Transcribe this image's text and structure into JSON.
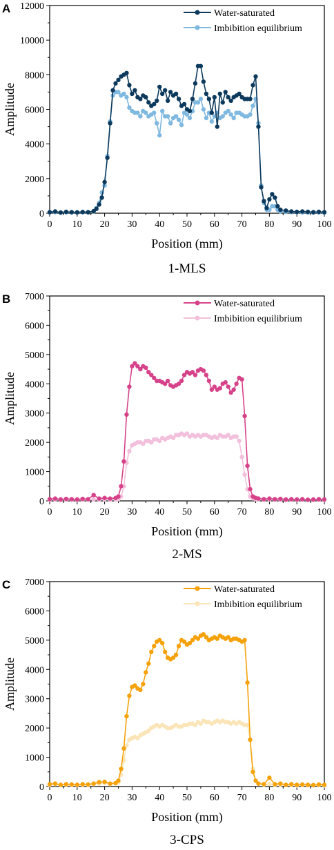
{
  "chart_data": [
    {
      "type": "line",
      "panel_label": "A",
      "caption": "1-MLS",
      "xlabel": "Position (mm)",
      "ylabel": "Amplitude",
      "xlim": [
        0,
        100
      ],
      "ylim": [
        0,
        12000
      ],
      "xticks": [
        0,
        10,
        20,
        30,
        40,
        50,
        60,
        70,
        80,
        90,
        100
      ],
      "yticks": [
        0,
        2000,
        4000,
        6000,
        8000,
        10000,
        12000
      ],
      "legend_position": "top-right",
      "series": [
        {
          "name": "Water-saturated",
          "color": "#0d3a5c",
          "x": [
            0,
            2,
            4,
            6,
            8,
            10,
            12,
            14,
            16,
            17,
            18,
            19,
            20,
            21,
            22,
            23,
            24,
            25,
            26,
            27,
            28,
            29,
            30,
            31,
            32,
            33,
            34,
            35,
            36,
            37,
            38,
            39,
            40,
            41,
            42,
            43,
            44,
            45,
            46,
            47,
            48,
            49,
            50,
            51,
            52,
            53,
            54,
            55,
            56,
            57,
            58,
            59,
            60,
            61,
            62,
            63,
            64,
            65,
            66,
            67,
            68,
            69,
            70,
            71,
            72,
            73,
            74,
            75,
            76,
            77,
            78,
            79,
            80,
            81,
            82,
            83,
            84,
            86,
            88,
            90,
            92,
            94,
            96,
            98,
            100
          ],
          "y": [
            60,
            100,
            40,
            80,
            60,
            50,
            70,
            60,
            120,
            250,
            500,
            900,
            1800,
            3200,
            5200,
            7100,
            7500,
            7700,
            7900,
            8000,
            8100,
            7400,
            6900,
            7100,
            6700,
            6600,
            6800,
            6700,
            6400,
            6200,
            6300,
            6500,
            7300,
            6900,
            7100,
            6500,
            7000,
            6800,
            6900,
            6600,
            6200,
            6300,
            6000,
            5900,
            6600,
            7500,
            8500,
            8500,
            7600,
            6900,
            6600,
            5800,
            6700,
            5000,
            6900,
            6400,
            7000,
            6700,
            6500,
            6700,
            6800,
            6900,
            6700,
            6600,
            6600,
            6600,
            7400,
            7900,
            5000,
            1500,
            700,
            300,
            800,
            1100,
            900,
            400,
            200,
            150,
            100,
            80,
            100,
            80,
            60,
            80,
            60
          ]
        },
        {
          "name": "Imbibition equilibrium",
          "color": "#7fb8e0",
          "x": [
            0,
            2,
            4,
            6,
            8,
            10,
            12,
            14,
            16,
            17,
            18,
            19,
            20,
            21,
            22,
            23,
            24,
            25,
            26,
            27,
            28,
            29,
            30,
            31,
            32,
            33,
            34,
            35,
            36,
            37,
            38,
            39,
            40,
            41,
            42,
            43,
            44,
            45,
            46,
            47,
            48,
            49,
            50,
            51,
            52,
            53,
            54,
            55,
            56,
            57,
            58,
            59,
            60,
            61,
            62,
            63,
            64,
            65,
            66,
            67,
            68,
            69,
            70,
            71,
            72,
            73,
            74,
            75,
            76,
            77,
            78,
            79,
            80,
            81,
            82,
            83,
            84,
            86,
            88,
            90,
            92,
            94,
            96,
            98,
            100
          ],
          "y": [
            40,
            60,
            30,
            50,
            40,
            30,
            50,
            40,
            100,
            300,
            600,
            1200,
            1600,
            3300,
            5300,
            6800,
            7000,
            7000,
            6800,
            6900,
            6700,
            6100,
            5900,
            5800,
            5800,
            5600,
            5900,
            5800,
            5600,
            5700,
            5800,
            5200,
            4500,
            5900,
            5600,
            5600,
            5200,
            5500,
            5600,
            5400,
            5100,
            5800,
            5700,
            5500,
            5900,
            6400,
            6400,
            6600,
            6000,
            5500,
            5800,
            5300,
            5600,
            5800,
            5500,
            5600,
            5800,
            5900,
            5700,
            5500,
            5800,
            5800,
            5700,
            5600,
            5600,
            5700,
            6200,
            6600,
            5200,
            1600,
            600,
            200,
            200,
            400,
            400,
            200,
            100,
            80,
            60,
            50,
            40,
            40,
            30,
            40,
            30
          ]
        }
      ]
    },
    {
      "type": "line",
      "panel_label": "B",
      "caption": "2-MS",
      "xlabel": "Position (mm)",
      "ylabel": "Amplitude",
      "xlim": [
        0,
        100
      ],
      "ylim": [
        0,
        7000
      ],
      "xticks": [
        0,
        10,
        20,
        30,
        40,
        50,
        60,
        70,
        80,
        90,
        100
      ],
      "yticks": [
        0,
        1000,
        2000,
        3000,
        4000,
        5000,
        6000,
        7000
      ],
      "legend_position": "top-right",
      "series": [
        {
          "name": "Water-saturated",
          "color": "#d6428a",
          "x": [
            0,
            2,
            4,
            6,
            8,
            10,
            12,
            14,
            16,
            18,
            20,
            22,
            24,
            25,
            26,
            27,
            28,
            29,
            30,
            31,
            32,
            33,
            34,
            35,
            36,
            37,
            38,
            39,
            40,
            41,
            42,
            43,
            44,
            45,
            46,
            47,
            48,
            49,
            50,
            51,
            52,
            53,
            54,
            55,
            56,
            57,
            58,
            59,
            60,
            61,
            62,
            63,
            64,
            65,
            66,
            67,
            68,
            69,
            70,
            71,
            72,
            73,
            74,
            75,
            76,
            78,
            80,
            82,
            84,
            86,
            88,
            90,
            92,
            94,
            96,
            98,
            100
          ],
          "y": [
            60,
            80,
            50,
            70,
            60,
            50,
            70,
            60,
            200,
            80,
            100,
            80,
            100,
            150,
            500,
            1350,
            2950,
            3900,
            4600,
            4700,
            4600,
            4500,
            4600,
            4550,
            4400,
            4300,
            4200,
            4100,
            4100,
            4050,
            4000,
            4100,
            3950,
            3900,
            3950,
            4000,
            4100,
            4300,
            4400,
            4350,
            4400,
            4300,
            4450,
            4500,
            4450,
            4300,
            4100,
            3800,
            3900,
            3800,
            3850,
            4000,
            4050,
            3900,
            3700,
            3800,
            4000,
            4200,
            4150,
            2900,
            1200,
            400,
            150,
            100,
            80,
            60,
            80,
            60,
            70,
            50,
            60,
            50,
            60,
            40,
            50,
            60,
            50
          ]
        },
        {
          "name": "Imbibition equilibrium",
          "color": "#f2c0dc",
          "x": [
            0,
            2,
            4,
            6,
            8,
            10,
            12,
            14,
            16,
            18,
            20,
            22,
            24,
            25,
            26,
            27,
            28,
            29,
            30,
            31,
            32,
            33,
            34,
            35,
            36,
            37,
            38,
            39,
            40,
            41,
            42,
            43,
            44,
            45,
            46,
            47,
            48,
            49,
            50,
            51,
            52,
            53,
            54,
            55,
            56,
            57,
            58,
            59,
            60,
            61,
            62,
            63,
            64,
            65,
            66,
            67,
            68,
            69,
            70,
            71,
            72,
            73,
            74,
            75,
            76,
            78,
            80,
            82,
            84,
            86,
            88,
            90,
            92,
            94,
            96,
            98,
            100
          ],
          "y": [
            40,
            50,
            30,
            40,
            40,
            30,
            40,
            40,
            50,
            40,
            50,
            40,
            50,
            60,
            150,
            500,
            1300,
            1700,
            1900,
            1950,
            2000,
            2000,
            1950,
            2050,
            2050,
            2000,
            2100,
            2100,
            2050,
            2150,
            2100,
            2150,
            2200,
            2150,
            2250,
            2250,
            2300,
            2250,
            2300,
            2200,
            2250,
            2200,
            2250,
            2200,
            2250,
            2250,
            2200,
            2150,
            2200,
            2150,
            2250,
            2200,
            2200,
            2250,
            2150,
            2200,
            2200,
            2050,
            1500,
            900,
            400,
            150,
            80,
            60,
            50,
            40,
            50,
            40,
            40,
            30,
            40,
            30,
            40,
            30,
            30,
            40,
            30
          ]
        }
      ]
    },
    {
      "type": "line",
      "panel_label": "C",
      "caption": "3-CPS",
      "xlabel": "Position (mm)",
      "ylabel": "Amplitude",
      "xlim": [
        0,
        100
      ],
      "ylim": [
        0,
        7000
      ],
      "xticks": [
        0,
        10,
        20,
        30,
        40,
        50,
        60,
        70,
        80,
        90,
        100
      ],
      "yticks": [
        0,
        1000,
        2000,
        3000,
        4000,
        5000,
        6000,
        7000
      ],
      "legend_position": "top-right",
      "series": [
        {
          "name": "Water-saturated",
          "color": "#f5a20a",
          "x": [
            0,
            2,
            4,
            6,
            8,
            10,
            12,
            14,
            16,
            18,
            20,
            22,
            24,
            25,
            26,
            27,
            28,
            29,
            30,
            31,
            32,
            33,
            34,
            35,
            36,
            37,
            38,
            39,
            40,
            41,
            42,
            43,
            44,
            45,
            46,
            47,
            48,
            49,
            50,
            51,
            52,
            53,
            54,
            55,
            56,
            57,
            58,
            59,
            60,
            61,
            62,
            63,
            64,
            65,
            66,
            67,
            68,
            69,
            70,
            71,
            72,
            73,
            74,
            75,
            76,
            78,
            80,
            82,
            84,
            86,
            88,
            90,
            92,
            94,
            96,
            98,
            100
          ],
          "y": [
            80,
            100,
            60,
            80,
            70,
            60,
            80,
            70,
            100,
            150,
            160,
            100,
            120,
            200,
            600,
            1300,
            2400,
            3100,
            3400,
            3450,
            3350,
            3300,
            3500,
            3900,
            4200,
            4600,
            4800,
            4950,
            5000,
            4900,
            4600,
            4400,
            4350,
            4400,
            4500,
            4800,
            5000,
            4950,
            4850,
            4900,
            5000,
            5100,
            5050,
            5150,
            5200,
            5100,
            5000,
            5050,
            5100,
            5050,
            5150,
            5100,
            5050,
            5100,
            5000,
            5050,
            5050,
            5000,
            4950,
            5000,
            3550,
            1600,
            500,
            200,
            100,
            80,
            300,
            80,
            100,
            60,
            80,
            60,
            70,
            60,
            50,
            70,
            60
          ]
        },
        {
          "name": "Imbibition equilibrium",
          "color": "#fae5b8",
          "x": [
            0,
            2,
            4,
            6,
            8,
            10,
            12,
            14,
            16,
            18,
            20,
            22,
            24,
            25,
            26,
            27,
            28,
            29,
            30,
            31,
            32,
            33,
            34,
            35,
            36,
            37,
            38,
            39,
            40,
            41,
            42,
            43,
            44,
            45,
            46,
            47,
            48,
            49,
            50,
            51,
            52,
            53,
            54,
            55,
            56,
            57,
            58,
            59,
            60,
            61,
            62,
            63,
            64,
            65,
            66,
            67,
            68,
            69,
            70,
            71,
            72,
            73,
            74,
            75,
            76,
            78,
            80,
            82,
            84,
            86,
            88,
            90,
            92,
            94,
            96,
            98,
            100
          ],
          "y": [
            60,
            80,
            50,
            60,
            50,
            50,
            60,
            50,
            80,
            100,
            120,
            80,
            100,
            150,
            400,
            900,
            1400,
            1600,
            1650,
            1700,
            1650,
            1750,
            1800,
            1850,
            1900,
            2000,
            2050,
            2100,
            2050,
            2100,
            2050,
            2000,
            2000,
            2050,
            2100,
            2050,
            2050,
            2100,
            2100,
            2150,
            2150,
            2100,
            2200,
            2150,
            2250,
            2200,
            2200,
            2150,
            2200,
            2250,
            2200,
            2250,
            2200,
            2200,
            2150,
            2200,
            2150,
            2200,
            2150,
            2100,
            2100,
            1600,
            600,
            200,
            100,
            60,
            80,
            50,
            60,
            50,
            50,
            40,
            50,
            40,
            40,
            50,
            40
          ]
        }
      ]
    }
  ]
}
